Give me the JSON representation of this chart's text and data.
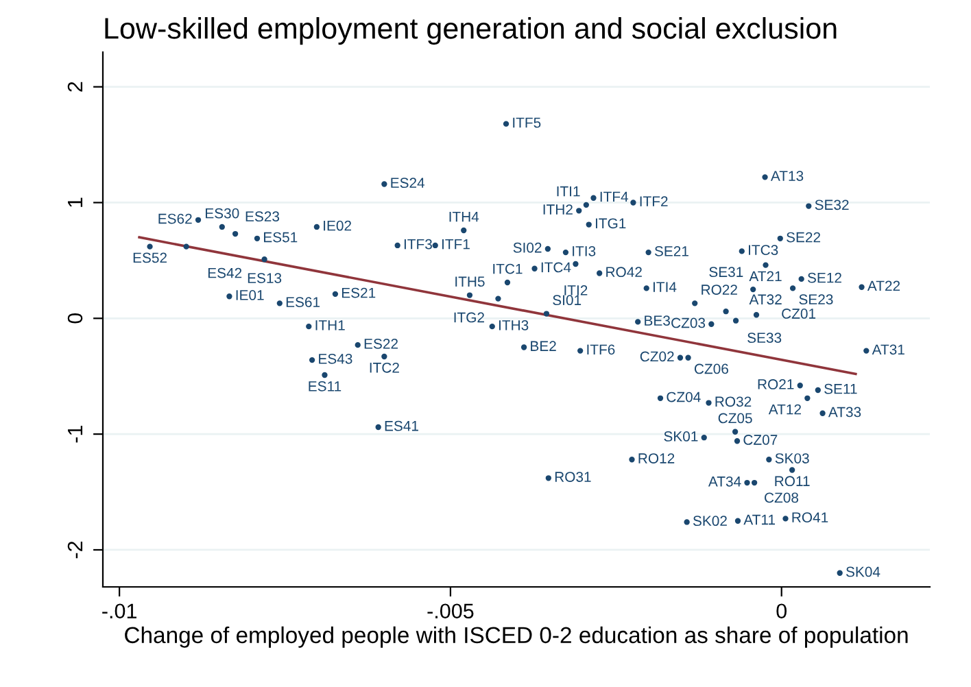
{
  "chart_data": {
    "type": "scatter",
    "title": "Low-skilled employment generation and social exclusion",
    "xlabel": "Change of employed people with ISCED 0-2 education as share of population",
    "xlim": [
      -0.01025,
      0.00224
    ],
    "ylim": [
      -2.32,
      2.3
    ],
    "xticks": [
      {
        "value": -0.01,
        "label": "-.01"
      },
      {
        "value": -0.005,
        "label": "-.005"
      },
      0
    ],
    "yticks": [
      -2,
      -1,
      0,
      1,
      2
    ],
    "grid": "y",
    "legend": false,
    "series": [
      {
        "marker": "circle",
        "color": "#1a476f",
        "x": [
          -0.00416,
          -0.006,
          -0.00881,
          -0.00845,
          -0.00825,
          -0.00792,
          -0.00954,
          -0.00899,
          -0.00702,
          -0.00781,
          -0.0058,
          -0.00523,
          -0.0048,
          -0.00834,
          -0.00758,
          -0.00674,
          -0.00471,
          -0.00714,
          -0.00437,
          -0.0064,
          -0.006,
          -0.00709,
          -0.0069,
          -0.00609,
          -0.00284,
          -0.00295,
          -0.00306,
          -0.00291,
          -0.00224,
          -0.00353,
          -0.00326,
          -0.00373,
          -0.00311,
          -0.00275,
          -0.00414,
          -0.00428,
          -0.00355,
          -0.00389,
          -0.00304,
          -0.00201,
          -0.00204,
          -0.00217,
          -0.00131,
          -0.00106,
          -0.00084,
          -0.00069,
          -0.00038,
          -0.0006,
          -0.00025,
          0.00041,
          -2e-05,
          -0.00024,
          0.0003,
          -0.00043,
          0.00017,
          0.00121,
          0.00128,
          -0.00153,
          -0.00141,
          0.00028,
          0.00055,
          0.00039,
          0.00062,
          -0.00183,
          -0.0011,
          -0.00117,
          -0.0007,
          -0.00067,
          -0.00226,
          -0.00019,
          0.00016,
          -0.00352,
          -0.00052,
          -0.00041,
          -0.00143,
          -0.00066,
          6e-05,
          0.00088
        ],
        "values": [
          1.68,
          1.16,
          0.85,
          0.79,
          0.73,
          0.69,
          0.62,
          0.62,
          0.79,
          0.51,
          0.63,
          0.63,
          0.76,
          0.19,
          0.13,
          0.21,
          0.2,
          -0.07,
          -0.07,
          -0.23,
          -0.33,
          -0.36,
          -0.49,
          -0.94,
          1.04,
          0.98,
          0.93,
          0.81,
          1.0,
          0.6,
          0.57,
          0.43,
          0.47,
          0.39,
          0.31,
          0.17,
          0.04,
          -0.25,
          -0.28,
          0.57,
          0.26,
          -0.03,
          0.13,
          -0.05,
          0.06,
          -0.02,
          0.03,
          0.58,
          1.22,
          0.97,
          0.69,
          0.46,
          0.34,
          0.25,
          0.26,
          0.27,
          -0.28,
          -0.34,
          -0.34,
          -0.58,
          -0.62,
          -0.69,
          -0.82,
          -0.69,
          -0.73,
          -1.03,
          -0.98,
          -1.06,
          -1.22,
          -1.22,
          -1.31,
          -1.38,
          -1.42,
          -1.42,
          -1.76,
          -1.75,
          -1.73,
          -2.2
        ],
        "value_labels": [
          "ITF5",
          "ES24",
          "ES62",
          "ES30",
          "ES23",
          "ES51",
          "ES52",
          "ES42",
          "IE02",
          "ES13",
          "ITF3",
          "ITF1",
          "ITH4",
          "IE01",
          "ES61",
          "ES21",
          "ITH5",
          "ITH1",
          "ITH3",
          "ES22",
          "ITC2",
          "ES43",
          "ES11",
          "ES41",
          "ITF4",
          "ITI1",
          "ITH2",
          "ITG1",
          "ITF2",
          "SI02",
          "ITI3",
          "ITC4",
          "ITI2",
          "RO42",
          "ITC1",
          "ITG2",
          "SI01",
          "BE2",
          "ITF6",
          "SE21",
          "ITI4",
          "BE3",
          "RO22",
          "CZ03",
          "SE33",
          "AT32",
          "CZ01",
          "ITC3",
          "AT13",
          "SE32",
          "SE22",
          "AT21",
          "SE12",
          "SE31",
          "SE23",
          "AT22",
          "AT31",
          "CZ02",
          "CZ06",
          "RO21",
          "SE11",
          "AT12",
          "AT33",
          "CZ04",
          "RO32",
          "SK01",
          "CZ05",
          "CZ07",
          "RO12",
          "SK03",
          "RO11",
          "RO31",
          "AT34",
          "CZ08",
          "SK02",
          "AT11",
          "RO41",
          "SK04"
        ]
      },
      {
        "type": "line",
        "color": "#90353b",
        "x": [
          -0.0097,
          0.00112
        ],
        "values": [
          0.7,
          -0.48
        ]
      }
    ]
  }
}
